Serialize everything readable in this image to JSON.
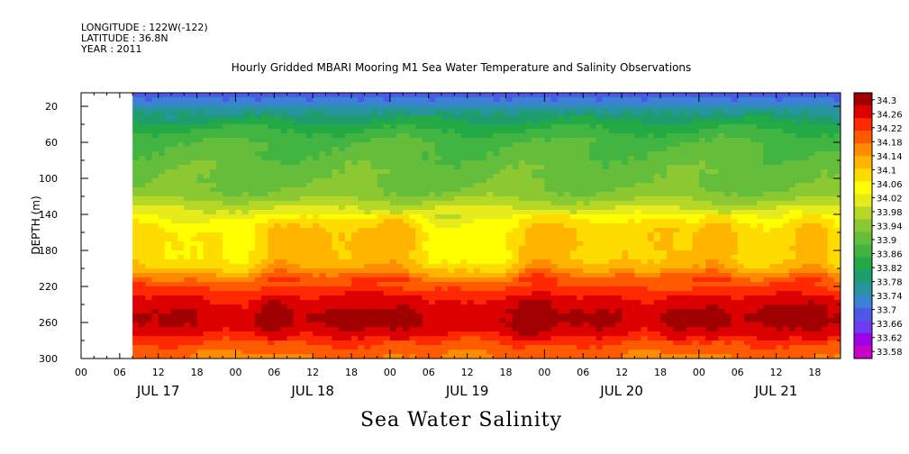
{
  "meta": {
    "longitude": "LONGITUDE : 122W(-122)",
    "latitude": "LATITUDE : 36.8N",
    "year": "YEAR : 2011"
  },
  "plot_title": "Hourly Gridded MBARI Mooring M1 Sea Water Temperature and Salinity Observations",
  "bottom_title": "Sea Water Salinity",
  "chart_data": {
    "type": "heatmap",
    "title": "Hourly Gridded MBARI Mooring M1 Sea Water Temperature and Salinity Observations",
    "subtitle": "Sea Water Salinity",
    "xlabel": "",
    "ylabel": "DEPTH (m)",
    "x_hour_ticks": [
      "00",
      "06",
      "12",
      "18",
      "00",
      "06",
      "12",
      "18",
      "00",
      "06",
      "12",
      "18",
      "00",
      "06",
      "12",
      "18",
      "00",
      "06",
      "12",
      "18"
    ],
    "x_day_labels": [
      "JUL 17",
      "JUL 18",
      "JUL 19",
      "JUL 20",
      "JUL 21"
    ],
    "x_range_hours": [
      0,
      118
    ],
    "data_start_hour": 8,
    "y_ticks": [
      20,
      60,
      100,
      140,
      180,
      220,
      260,
      300
    ],
    "y_range": [
      300,
      5
    ],
    "depths": [
      5,
      10,
      20,
      30,
      40,
      50,
      60,
      70,
      80,
      90,
      100,
      110,
      120,
      130,
      140,
      150,
      160,
      170,
      180,
      190,
      200,
      210,
      220,
      230,
      240,
      250,
      260,
      270,
      280,
      290,
      300
    ],
    "base_profile": [
      33.67,
      33.7,
      33.74,
      33.79,
      33.83,
      33.86,
      33.88,
      33.89,
      33.9,
      33.91,
      33.91,
      33.92,
      33.94,
      33.98,
      34.02,
      34.06,
      34.08,
      34.08,
      34.08,
      34.08,
      34.11,
      34.17,
      34.21,
      34.24,
      34.26,
      34.28,
      34.28,
      34.26,
      34.22,
      34.19,
      34.17
    ],
    "deep_anomaly_hours": [
      30,
      50,
      70,
      92,
      98,
      114
    ],
    "colorbar": {
      "levels": [
        "34.3",
        "34.26",
        "34.22",
        "34.18",
        "34.14",
        "34.1",
        "34.06",
        "34.02",
        "33.98",
        "33.94",
        "33.9",
        "33.86",
        "33.82",
        "33.78",
        "33.74",
        "33.7",
        "33.66",
        "33.62",
        "33.58"
      ],
      "min": 33.58,
      "max": 34.3,
      "colors": [
        "#c800c8",
        "#a000e6",
        "#6e3cf0",
        "#4b5ae6",
        "#3c82d2",
        "#2894a0",
        "#1e9e6e",
        "#23aa46",
        "#41b441",
        "#64be3c",
        "#8cc832",
        "#b4d728",
        "#e6eb1e",
        "#ffff00",
        "#ffdc00",
        "#ffb400",
        "#ff8c00",
        "#ff5a00",
        "#ff2800",
        "#dc0000",
        "#a00000"
      ]
    }
  }
}
